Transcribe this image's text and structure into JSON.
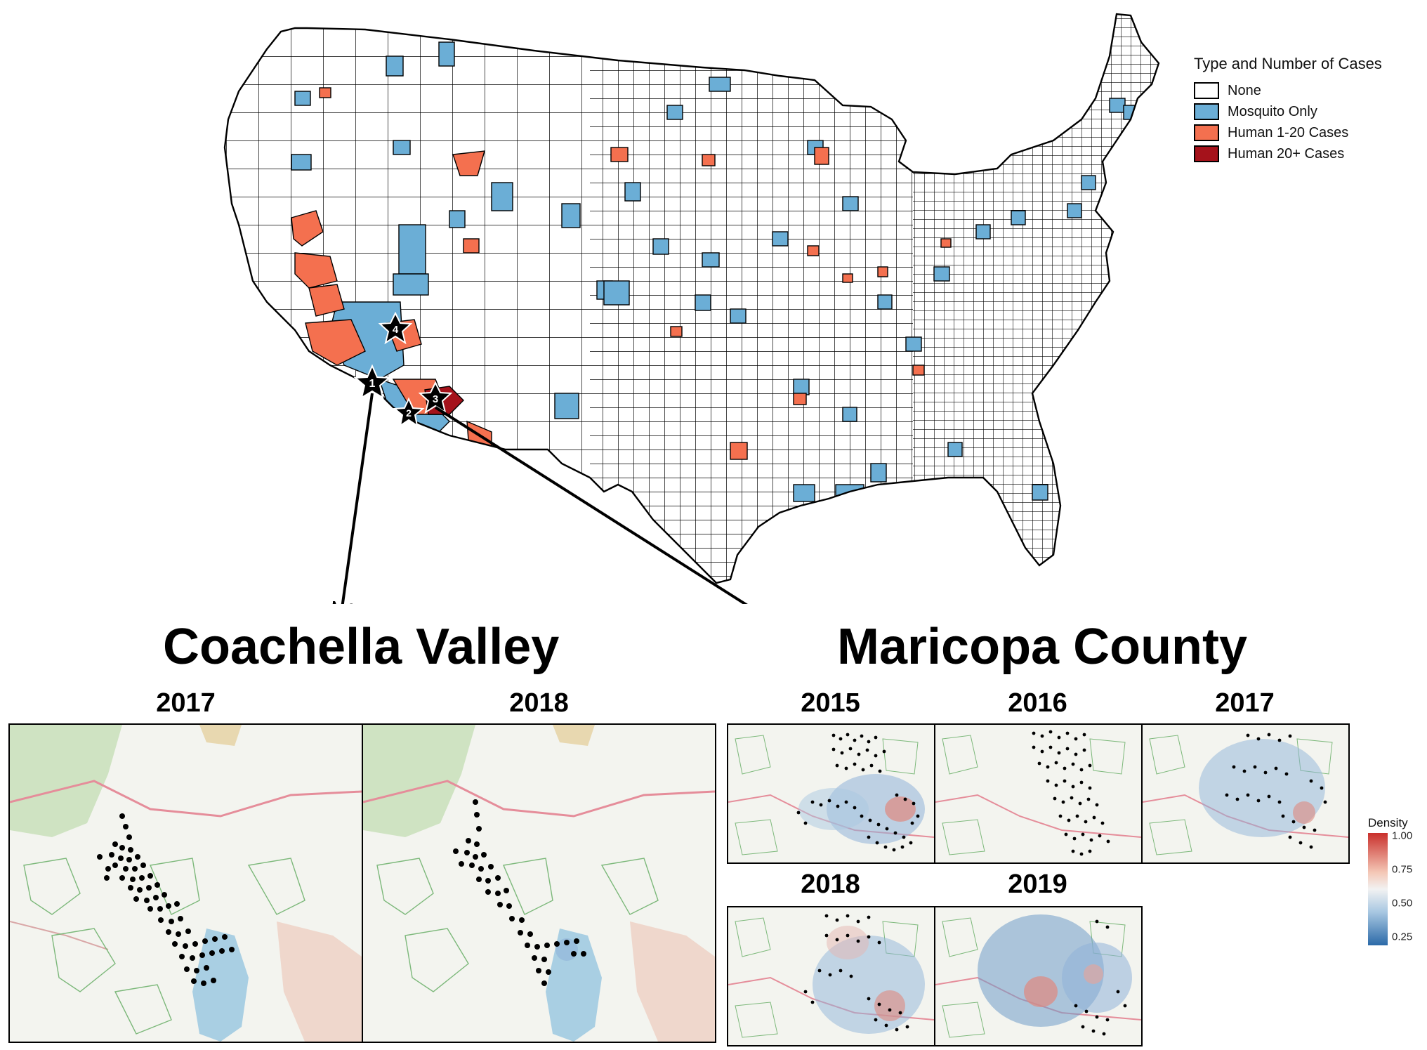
{
  "legend": {
    "title": "Type and Number of Cases",
    "items": [
      {
        "label": "None",
        "color": "#ffffff"
      },
      {
        "label": "Mosquito Only",
        "color": "#6baed6"
      },
      {
        "label": "Human 1-20 Cases",
        "color": "#f4704f"
      },
      {
        "label": "Human 20+ Cases",
        "color": "#a5121b"
      }
    ]
  },
  "markers": [
    "1",
    "2",
    "3",
    "4"
  ],
  "regions": {
    "coachella": {
      "title": "Coachella Valley",
      "years": [
        "2017",
        "2018"
      ]
    },
    "maricopa": {
      "title": "Maricopa County",
      "years": [
        "2015",
        "2016",
        "2017",
        "2018",
        "2019"
      ]
    }
  },
  "density_legend": {
    "title": "Density",
    "ticks": [
      "1.00",
      "0.75",
      "0.50",
      "0.25"
    ]
  }
}
